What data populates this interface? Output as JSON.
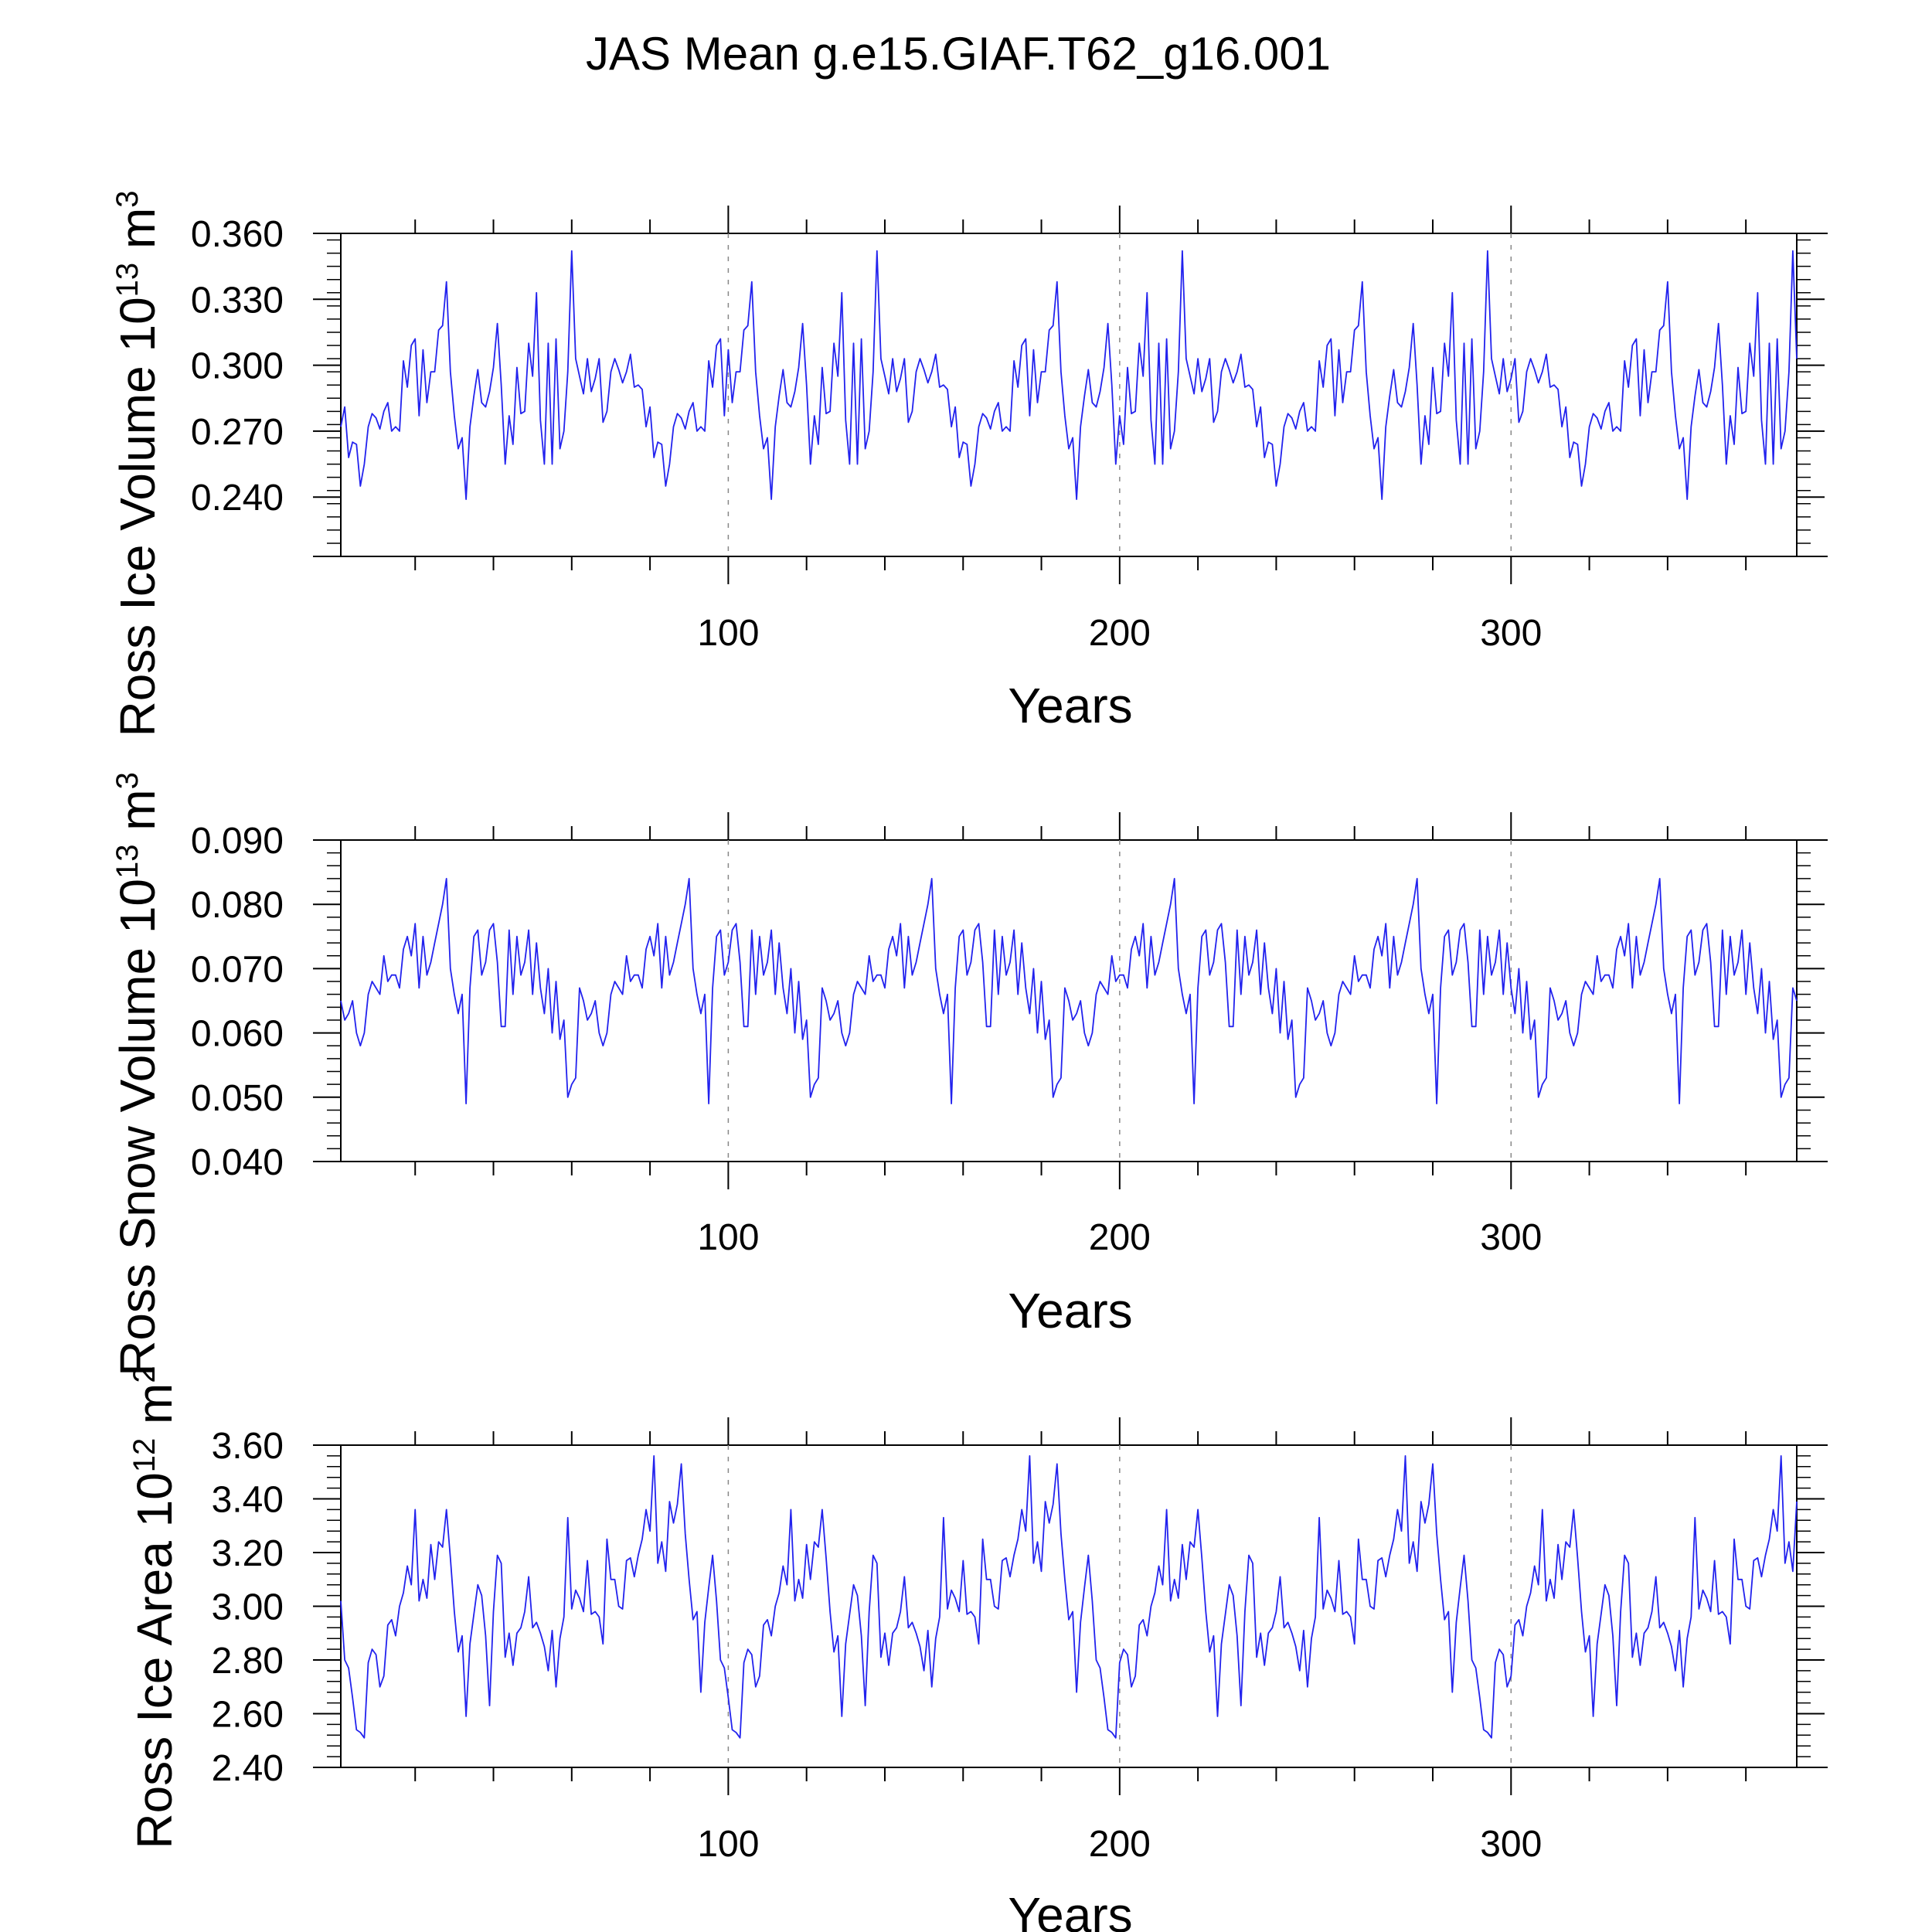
{
  "title": "JAS Mean g.e15.GIAF.T62_g16.001",
  "colors": {
    "series": "#2222ee",
    "axis": "#000000",
    "refline": "#888888"
  },
  "chart_data": [
    {
      "type": "line",
      "ylabel": {
        "main": "Ross Ice Volume 10",
        "exp": "13",
        "unit": " m",
        "unit_exp": "3"
      },
      "xlabel": "Years",
      "xlim": [
        1,
        373
      ],
      "ylim": [
        0.213,
        0.36
      ],
      "yticks": [
        0.24,
        0.27,
        0.3,
        0.33,
        0.36
      ],
      "ytick_labels": [
        "0.240",
        "0.270",
        "0.300",
        "0.330",
        "0.360"
      ],
      "xticks": [
        100,
        200,
        300
      ],
      "xtick_labels": [
        "100",
        "200",
        "300"
      ],
      "grid": false,
      "reference_lines_x": [
        100,
        200,
        300
      ],
      "pattern_estimate": [
        0.272,
        0.281,
        0.258,
        0.265,
        0.264,
        0.245,
        0.255,
        0.272,
        0.278,
        0.276,
        0.271,
        0.279,
        0.283,
        0.27,
        0.272,
        0.27,
        0.302,
        0.29,
        0.309,
        0.312,
        0.277,
        0.307,
        0.283,
        0.297,
        0.297,
        0.316,
        0.318,
        0.338,
        0.297,
        0.277,
        0.262,
        0.267,
        0.239,
        0.272,
        0.286,
        0.298,
        0.283,
        0.281,
        0.288,
        0.299,
        0.319,
        0.291,
        0.255,
        0.277,
        0.264,
        0.299,
        0.278,
        0.279,
        0.31,
        0.295,
        0.333,
        0.275,
        0.255,
        0.31,
        0.255,
        0.312,
        0.262,
        0.27,
        0.297,
        0.352,
        0.303,
        0.295,
        0.287,
        0.303,
        0.288,
        0.294,
        0.303,
        0.274,
        0.279,
        0.297,
        0.303,
        0.298,
        0.292,
        0.297,
        0.305,
        0.29,
        0.291,
        0.289
      ],
      "series": [
        {
          "name": "",
          "source": "tiled"
        }
      ]
    },
    {
      "type": "line",
      "ylabel": {
        "main": "Ross Snow Volume 10",
        "exp": "13",
        "unit": " m",
        "unit_exp": "3"
      },
      "xlabel": "Years",
      "xlim": [
        1,
        373
      ],
      "ylim": [
        0.04,
        0.09
      ],
      "yticks": [
        0.04,
        0.05,
        0.06,
        0.07,
        0.08,
        0.09
      ],
      "ytick_labels": [
        "0.040",
        "0.050",
        "0.060",
        "0.070",
        "0.080",
        "0.090"
      ],
      "xticks": [
        100,
        200,
        300
      ],
      "xtick_labels": [
        "100",
        "200",
        "300"
      ],
      "grid": false,
      "reference_lines_x": [
        100,
        200,
        300
      ],
      "pattern_estimate": [
        0.065,
        0.062,
        0.063,
        0.065,
        0.06,
        0.058,
        0.06,
        0.066,
        0.068,
        0.067,
        0.066,
        0.072,
        0.068,
        0.069,
        0.069,
        0.067,
        0.073,
        0.075,
        0.072,
        0.077,
        0.067,
        0.075,
        0.069,
        0.071,
        0.074,
        0.077,
        0.08,
        0.084,
        0.07,
        0.066,
        0.063,
        0.066,
        0.049,
        0.067,
        0.075,
        0.076,
        0.069,
        0.071,
        0.076,
        0.077,
        0.071,
        0.061,
        0.061,
        0.076,
        0.066,
        0.075,
        0.069,
        0.071,
        0.076,
        0.066,
        0.074,
        0.067,
        0.063,
        0.07,
        0.06,
        0.068,
        0.059,
        0.062,
        0.05,
        0.052,
        0.053,
        0.067
      ],
      "series": [
        {
          "name": "",
          "source": "tiled"
        }
      ]
    },
    {
      "type": "line",
      "ylabel": {
        "main": "Ross Ice Area 10",
        "exp": "12",
        "unit": " m",
        "unit_exp": "2"
      },
      "xlabel": "Years",
      "xlim": [
        1,
        373
      ],
      "ylim": [
        2.4,
        3.6
      ],
      "yticks": [
        2.4,
        2.6,
        2.8,
        3.0,
        3.2,
        3.4,
        3.6
      ],
      "ytick_labels": [
        "2.40",
        "2.60",
        "2.80",
        "3.00",
        "3.20",
        "3.40",
        "3.60"
      ],
      "xticks": [
        100,
        200,
        300
      ],
      "xtick_labels": [
        "100",
        "200",
        "300"
      ],
      "grid": false,
      "reference_lines_x": [
        100,
        200,
        300
      ],
      "pattern_estimate": [
        3.02,
        2.8,
        2.77,
        2.66,
        2.54,
        2.53,
        2.51,
        2.79,
        2.84,
        2.82,
        2.7,
        2.74,
        2.93,
        2.95,
        2.89,
        3.0,
        3.05,
        3.15,
        3.08,
        3.36,
        3.02,
        3.1,
        3.03,
        3.23,
        3.1,
        3.24,
        3.22,
        3.36,
        3.18,
        2.98,
        2.83,
        2.89,
        2.59,
        2.86,
        2.97,
        3.08,
        3.04,
        2.89,
        2.63,
        2.98,
        3.19,
        3.16,
        2.81,
        2.9,
        2.78,
        2.9,
        2.92,
        2.98,
        3.11,
        2.92,
        2.94,
        2.9,
        2.85,
        2.76,
        2.91,
        2.7,
        2.88,
        2.96,
        3.33,
        2.99,
        3.06,
        3.03,
        2.98,
        3.17,
        2.97,
        2.98,
        2.96,
        2.86,
        3.25,
        3.1,
        3.1,
        3.0,
        2.99,
        3.17,
        3.18,
        3.11,
        3.19,
        3.25,
        3.36,
        3.28,
        3.56,
        3.16,
        3.24,
        3.13,
        3.39,
        3.31,
        3.38,
        3.53,
        3.27,
        3.1,
        2.95,
        2.98,
        2.68,
        2.94,
        3.07,
        3.19
      ],
      "series": [
        {
          "name": "",
          "source": "tiled"
        }
      ]
    }
  ]
}
